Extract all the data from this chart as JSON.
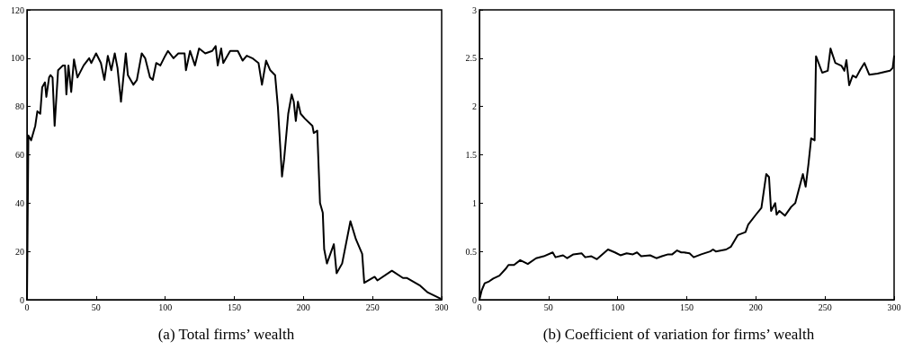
{
  "chart_data": [
    {
      "type": "line",
      "title": "(a) Total firms’ wealth",
      "xlim": [
        0,
        300
      ],
      "xticks": [
        0,
        50,
        100,
        150,
        200,
        250,
        300
      ],
      "ylim": [
        0,
        120
      ],
      "yticks": [
        0,
        20,
        40,
        60,
        80,
        100,
        120
      ],
      "grid": false,
      "marker": "none",
      "line_style": "solid",
      "series": [
        {
          "color": "#000000",
          "x": [
            0,
            1,
            3,
            6,
            7.5,
            9.6,
            11,
            13,
            14,
            16,
            17,
            18.5,
            20,
            22.5,
            26,
            27.5,
            28.5,
            30,
            32,
            34,
            36.5,
            41,
            45,
            46.5,
            50,
            53.5,
            56,
            58.5,
            61,
            63.5,
            65.5,
            68,
            71.5,
            73,
            77,
            79.5,
            83,
            85.5,
            89,
            91,
            93.5,
            96.5,
            100,
            102,
            106,
            109.5,
            114,
            115,
            118,
            121.5,
            124.5,
            129,
            134,
            136.5,
            138,
            140.5,
            142,
            147,
            152.5,
            156,
            159,
            163,
            167.5,
            170,
            173,
            176,
            179.5,
            181.5,
            184.5,
            186,
            189,
            191.5,
            193,
            194.5,
            196,
            198,
            201,
            206.5,
            207.5,
            210,
            212,
            214,
            215,
            217,
            222,
            224,
            228,
            234,
            238,
            242.5,
            244,
            251.5,
            253.5,
            264,
            272,
            275,
            284,
            290,
            299
          ],
          "values": [
            0,
            68,
            66,
            72,
            78,
            77,
            88,
            90,
            84,
            92,
            93,
            92,
            72,
            95,
            97,
            97,
            85,
            97,
            86,
            99.5,
            92,
            97,
            100,
            98,
            102,
            98,
            91,
            101,
            95,
            102,
            96,
            82,
            102,
            93,
            89,
            91,
            102,
            100,
            92,
            91,
            98,
            97,
            101,
            103,
            100,
            102,
            102,
            95,
            103,
            97,
            104,
            102,
            103,
            105,
            97,
            104,
            98,
            103,
            103,
            99,
            101,
            100,
            98,
            89,
            99,
            95,
            93,
            80,
            51,
            58,
            77,
            85,
            82,
            74,
            82,
            77,
            75,
            72,
            69,
            70,
            40,
            36,
            21,
            15,
            23,
            11,
            15,
            32.5,
            25,
            19,
            7,
            9.5,
            8,
            12,
            9,
            9,
            6,
            3,
            0.5
          ]
        }
      ]
    },
    {
      "type": "line",
      "title": "(b) Coefficient of variation for firms’ wealth",
      "xlim": [
        0,
        300
      ],
      "xticks": [
        0,
        50,
        100,
        150,
        200,
        250,
        300
      ],
      "ylim": [
        0,
        3
      ],
      "yticks": [
        0,
        0.5,
        1,
        1.5,
        2,
        2.5,
        3
      ],
      "grid": false,
      "marker": "none",
      "line_style": "solid",
      "series": [
        {
          "color": "#000000",
          "x": [
            0,
            1.7,
            3.8,
            7,
            10,
            14.5,
            19,
            21,
            25,
            29.5,
            35,
            41,
            46.5,
            53,
            55,
            60.5,
            63.5,
            68,
            74,
            76.5,
            81,
            85,
            93,
            98,
            102,
            106.5,
            111,
            114,
            117,
            123.5,
            128,
            132,
            136.5,
            139.5,
            143,
            146,
            148,
            152,
            155,
            160.5,
            167,
            169,
            171,
            178.5,
            182,
            187,
            192.5,
            194.5,
            200,
            204,
            207.5,
            209.5,
            211,
            214,
            215,
            217,
            221,
            225.5,
            228.5,
            234,
            236,
            238,
            240,
            242.5,
            243.5,
            248,
            252,
            254,
            257.5,
            262,
            264,
            265.5,
            267.5,
            270,
            272.5,
            275.5,
            278.5,
            282,
            288,
            297,
            299,
            300
          ],
          "values": [
            0,
            0.1,
            0.17,
            0.19,
            0.22,
            0.25,
            0.32,
            0.36,
            0.36,
            0.41,
            0.37,
            0.43,
            0.45,
            0.49,
            0.44,
            0.46,
            0.43,
            0.47,
            0.48,
            0.44,
            0.45,
            0.42,
            0.52,
            0.49,
            0.46,
            0.48,
            0.47,
            0.49,
            0.45,
            0.46,
            0.43,
            0.45,
            0.47,
            0.47,
            0.51,
            0.49,
            0.49,
            0.48,
            0.44,
            0.47,
            0.5,
            0.52,
            0.5,
            0.52,
            0.55,
            0.67,
            0.7,
            0.78,
            0.88,
            0.95,
            1.3,
            1.27,
            0.92,
            1.0,
            0.88,
            0.92,
            0.87,
            0.96,
            1.0,
            1.3,
            1.17,
            1.4,
            1.67,
            1.65,
            2.52,
            2.35,
            2.37,
            2.6,
            2.45,
            2.42,
            2.37,
            2.48,
            2.22,
            2.32,
            2.3,
            2.38,
            2.45,
            2.33,
            2.34,
            2.37,
            2.4,
            2.52
          ]
        }
      ]
    }
  ]
}
